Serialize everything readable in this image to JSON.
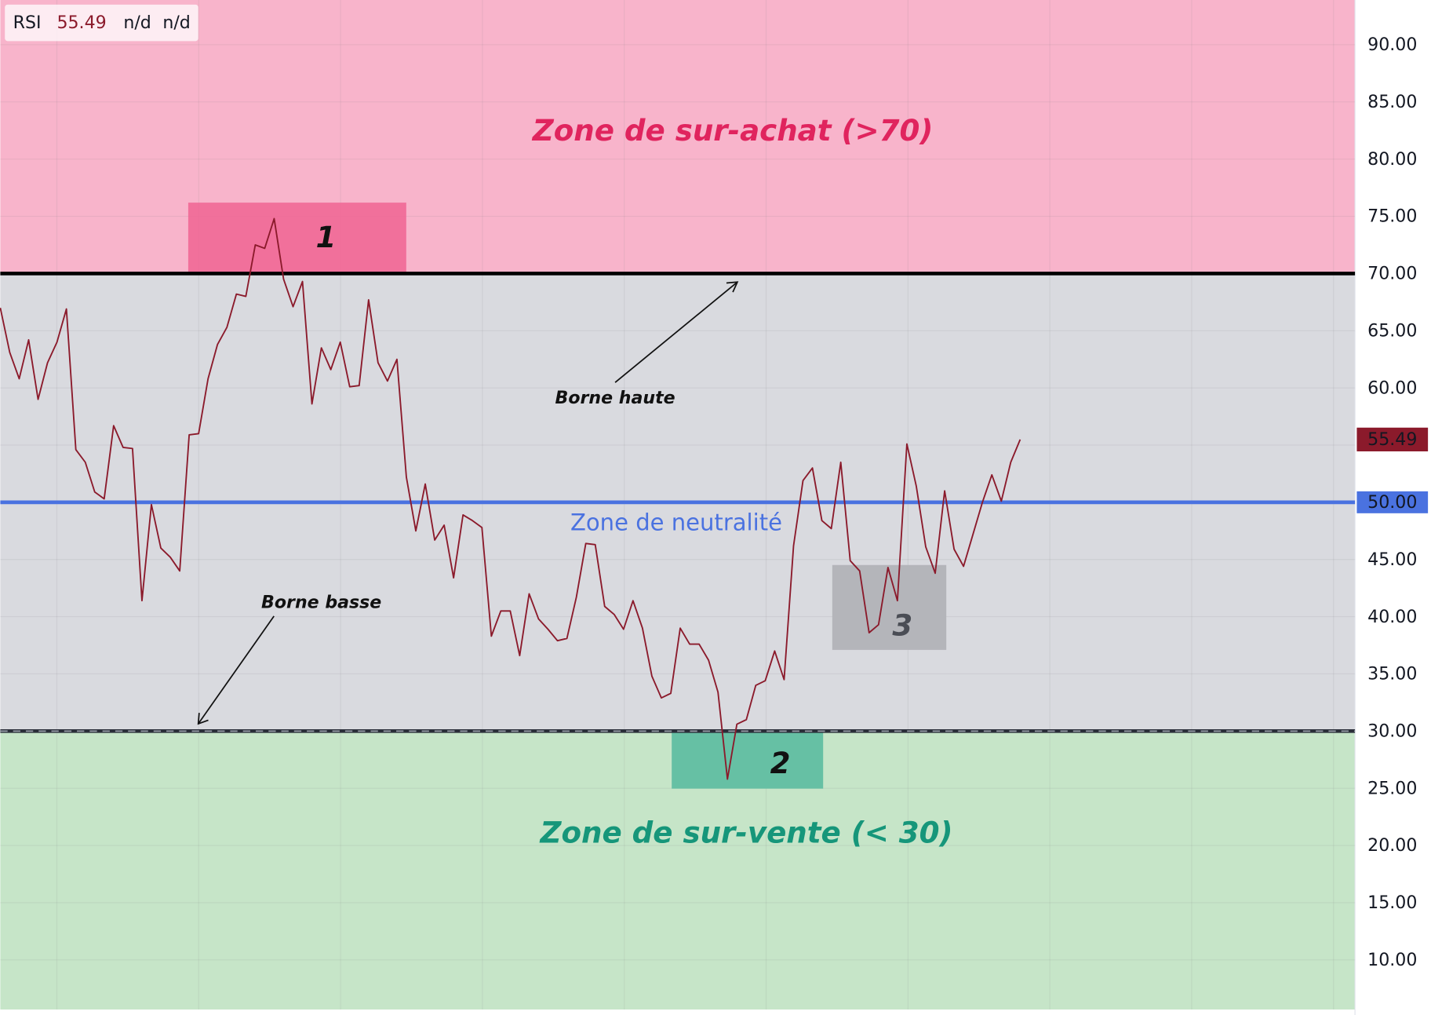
{
  "chart_data": {
    "type": "line",
    "series": [
      {
        "name": "RSI",
        "color": "#8b1a2b",
        "values": [
          67.0,
          63.1,
          60.8,
          64.2,
          59.0,
          62.2,
          64.0,
          66.9,
          54.6,
          53.5,
          50.9,
          50.3,
          56.7,
          54.8,
          54.7,
          41.4,
          49.8,
          46.0,
          45.2,
          44.0,
          55.9,
          56.0,
          60.8,
          63.8,
          65.3,
          68.2,
          68.0,
          72.5,
          72.2,
          74.8,
          69.5,
          67.1,
          69.3,
          58.6,
          63.5,
          61.6,
          64.0,
          60.1,
          60.2,
          67.7,
          62.2,
          60.6,
          62.5,
          52.2,
          47.5,
          51.6,
          46.7,
          48.0,
          43.4,
          48.9,
          48.4,
          47.8,
          38.3,
          40.5,
          40.5,
          36.6,
          42.0,
          39.8,
          38.9,
          37.9,
          38.1,
          41.7,
          46.4,
          46.3,
          40.9,
          40.2,
          38.9,
          41.4,
          39.0,
          34.8,
          32.9,
          33.3,
          39.0,
          37.6,
          37.6,
          36.2,
          33.4,
          25.8,
          30.6,
          31.0,
          34.0,
          34.4,
          37.0,
          34.5,
          46.2,
          51.9,
          53.0,
          48.4,
          47.7,
          53.5,
          44.9,
          44.0,
          38.6,
          39.3,
          44.3,
          41.4,
          55.1,
          51.4,
          46.1,
          43.8,
          51.0,
          45.9,
          44.4,
          47.2,
          50.0,
          52.4,
          50.1,
          53.5,
          55.49
        ]
      }
    ],
    "legend_extra": [
      "n/d",
      "n/d"
    ],
    "ylim": [
      5.66,
      93.91
    ],
    "yticks": [
      {
        "value": 10,
        "label": "10.00"
      },
      {
        "value": 15,
        "label": "15.00"
      },
      {
        "value": 20,
        "label": "20.00"
      },
      {
        "value": 25,
        "label": "25.00"
      },
      {
        "value": 30,
        "label": "30.00"
      },
      {
        "value": 35,
        "label": "35.00"
      },
      {
        "value": 40,
        "label": "40.00"
      },
      {
        "value": 45,
        "label": "45.00"
      },
      {
        "value": 50,
        "label": "50.00"
      },
      {
        "value": 55,
        "label": "55.00"
      },
      {
        "value": 60,
        "label": "60.00"
      },
      {
        "value": 65,
        "label": "65.00"
      },
      {
        "value": 70,
        "label": "70.00"
      },
      {
        "value": 75,
        "label": "75.00"
      },
      {
        "value": 80,
        "label": "80.00"
      },
      {
        "value": 85,
        "label": "85.00"
      },
      {
        "value": 90,
        "label": "90.00"
      }
    ],
    "grid": true,
    "levels": [
      {
        "value": 70,
        "color": "#000000"
      },
      {
        "value": 50,
        "color": "#4a72e0"
      },
      {
        "value": 30,
        "color": "#2a2e39"
      }
    ],
    "annotations": {
      "overbought": "Zone de sur-achat (>70)",
      "neutral": "Zone de neutralité",
      "oversold": "Zone de sur-vente (< 30)",
      "upper": "Borne haute",
      "lower": "Borne basse",
      "box1": "1",
      "box2": "2",
      "box3": "3"
    }
  }
}
